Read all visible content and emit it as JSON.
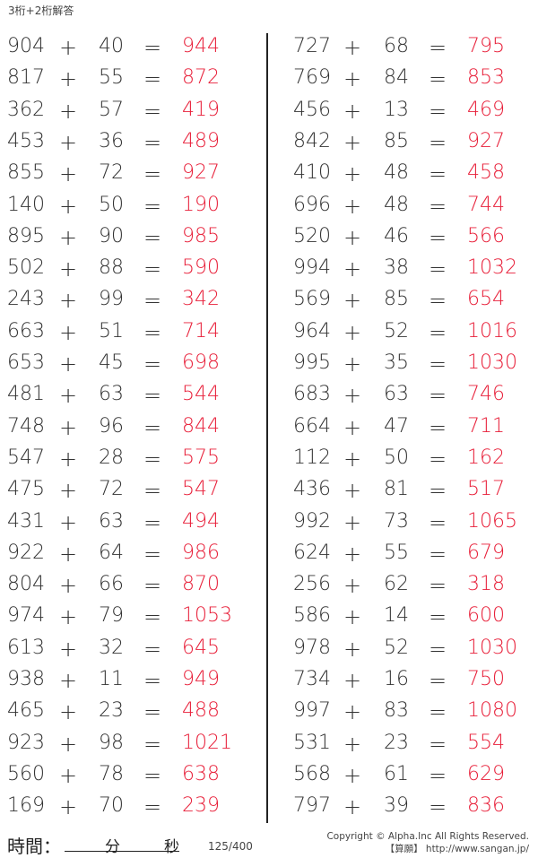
{
  "title": "3桁+2桁解答",
  "operator": "+",
  "equals": "=",
  "left_problems": [
    [
      "904",
      "40",
      "944"
    ],
    [
      "817",
      "55",
      "872"
    ],
    [
      "362",
      "57",
      "419"
    ],
    [
      "453",
      "36",
      "489"
    ],
    [
      "855",
      "72",
      "927"
    ],
    [
      "140",
      "50",
      "190"
    ],
    [
      "895",
      "90",
      "985"
    ],
    [
      "502",
      "88",
      "590"
    ],
    [
      "243",
      "99",
      "342"
    ],
    [
      "663",
      "51",
      "714"
    ],
    [
      "653",
      "45",
      "698"
    ],
    [
      "481",
      "63",
      "544"
    ],
    [
      "748",
      "96",
      "844"
    ],
    [
      "547",
      "28",
      "575"
    ],
    [
      "475",
      "72",
      "547"
    ],
    [
      "431",
      "63",
      "494"
    ],
    [
      "922",
      "64",
      "986"
    ],
    [
      "804",
      "66",
      "870"
    ],
    [
      "974",
      "79",
      "1053"
    ],
    [
      "613",
      "32",
      "645"
    ],
    [
      "938",
      "11",
      "949"
    ],
    [
      "465",
      "23",
      "488"
    ],
    [
      "923",
      "98",
      "1021"
    ],
    [
      "560",
      "78",
      "638"
    ],
    [
      "169",
      "70",
      "239"
    ]
  ],
  "right_problems": [
    [
      "727",
      "68",
      "795"
    ],
    [
      "769",
      "84",
      "853"
    ],
    [
      "456",
      "13",
      "469"
    ],
    [
      "842",
      "85",
      "927"
    ],
    [
      "410",
      "48",
      "458"
    ],
    [
      "696",
      "48",
      "744"
    ],
    [
      "520",
      "46",
      "566"
    ],
    [
      "994",
      "38",
      "1032"
    ],
    [
      "569",
      "85",
      "654"
    ],
    [
      "964",
      "52",
      "1016"
    ],
    [
      "995",
      "35",
      "1030"
    ],
    [
      "683",
      "63",
      "746"
    ],
    [
      "664",
      "47",
      "711"
    ],
    [
      "112",
      "50",
      "162"
    ],
    [
      "436",
      "81",
      "517"
    ],
    [
      "992",
      "73",
      "1065"
    ],
    [
      "624",
      "55",
      "679"
    ],
    [
      "256",
      "62",
      "318"
    ],
    [
      "586",
      "14",
      "600"
    ],
    [
      "978",
      "52",
      "1030"
    ],
    [
      "734",
      "16",
      "750"
    ],
    [
      "997",
      "83",
      "1080"
    ],
    [
      "531",
      "23",
      "554"
    ],
    [
      "568",
      "61",
      "629"
    ],
    [
      "797",
      "39",
      "836"
    ]
  ],
  "answer_color": "#e8203a",
  "footer": {
    "time_label": "時間：",
    "minutes": "分",
    "seconds": "秒",
    "page_number": "125/400",
    "copyright": "Copyright © Alpha.Inc All Rights Reserved.",
    "site": "【算願】 http://www.sangan.jp/"
  }
}
